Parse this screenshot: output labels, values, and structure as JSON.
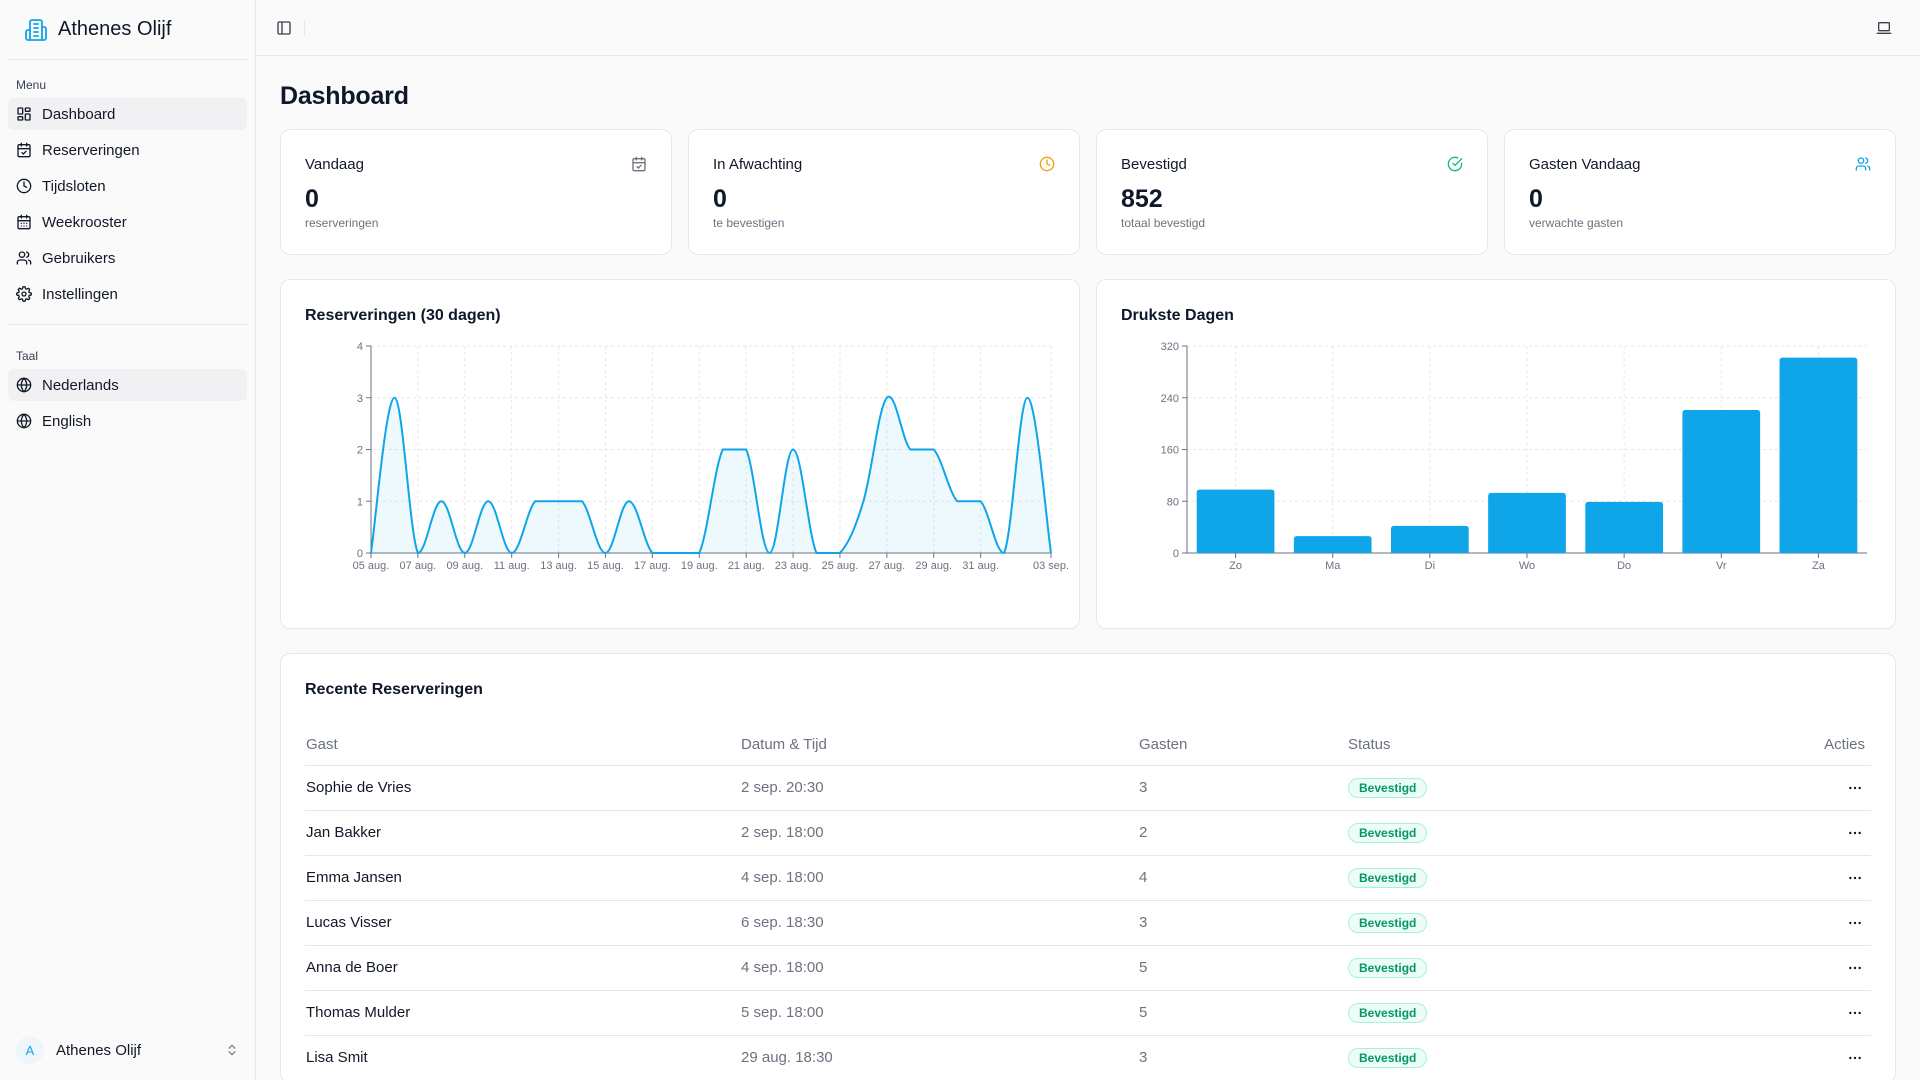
{
  "app": {
    "name": "Athenes Olijf"
  },
  "sidebar": {
    "menu_label": "Menu",
    "items": [
      {
        "label": "Dashboard",
        "icon": "grid-icon",
        "active": true
      },
      {
        "label": "Reserveringen",
        "icon": "calendar-check-icon"
      },
      {
        "label": "Tijdsloten",
        "icon": "clock-icon"
      },
      {
        "label": "Weekrooster",
        "icon": "calendar-icon"
      },
      {
        "label": "Gebruikers",
        "icon": "users-icon"
      },
      {
        "label": "Instellingen",
        "icon": "gear-icon"
      }
    ],
    "lang_label": "Taal",
    "languages": [
      {
        "label": "Nederlands",
        "icon": "globe-icon",
        "active": true
      },
      {
        "label": "English",
        "icon": "globe-icon"
      }
    ],
    "user": {
      "initial": "A",
      "name": "Athenes Olijf"
    }
  },
  "page": {
    "title": "Dashboard"
  },
  "stats": [
    {
      "title": "Vandaag",
      "value": "0",
      "sub": "reserveringen",
      "icon": "calendar-check-icon",
      "color": "#6b7280"
    },
    {
      "title": "In Afwachting",
      "value": "0",
      "sub": "te bevestigen",
      "icon": "clock-icon",
      "color": "#f59e0b"
    },
    {
      "title": "Bevestigd",
      "value": "852",
      "sub": "totaal bevestigd",
      "icon": "check-circle-icon",
      "color": "#10b981"
    },
    {
      "title": "Gasten Vandaag",
      "value": "0",
      "sub": "verwachte gasten",
      "icon": "users-icon",
      "color": "#0ea5e9"
    }
  ],
  "chart_data": [
    {
      "type": "area",
      "title": "Reserveringen (30 dagen)",
      "x": [
        "05 aug.",
        "06 aug.",
        "07 aug.",
        "08 aug.",
        "09 aug.",
        "10 aug.",
        "11 aug.",
        "12 aug.",
        "13 aug.",
        "14 aug.",
        "15 aug.",
        "16 aug.",
        "17 aug.",
        "18 aug.",
        "19 aug.",
        "20 aug.",
        "21 aug.",
        "22 aug.",
        "23 aug.",
        "24 aug.",
        "25 aug.",
        "26 aug.",
        "27 aug.",
        "28 aug.",
        "29 aug.",
        "30 aug.",
        "31 aug.",
        "01 sep.",
        "02 sep.",
        "03 sep."
      ],
      "x_tick_labels": [
        "05 aug.",
        "07 aug.",
        "09 aug.",
        "11 aug.",
        "13 aug.",
        "15 aug.",
        "17 aug.",
        "19 aug.",
        "21 aug.",
        "23 aug.",
        "25 aug.",
        "27 aug.",
        "29 aug.",
        "31 aug.",
        "03 sep."
      ],
      "values": [
        0,
        3,
        0,
        1,
        0,
        1,
        0,
        1,
        1,
        1,
        0,
        1,
        0,
        0,
        0,
        2,
        2,
        0,
        2,
        0,
        0,
        1,
        3,
        2,
        2,
        1,
        1,
        0,
        3,
        0
      ],
      "ylim": [
        0,
        4
      ],
      "yticks": [
        0,
        1,
        2,
        3,
        4
      ],
      "color": "#0ea5e9",
      "grid": true
    },
    {
      "type": "bar",
      "title": "Drukste Dagen",
      "categories": [
        "Zo",
        "Ma",
        "Di",
        "Wo",
        "Do",
        "Vr",
        "Za"
      ],
      "values": [
        98,
        26,
        42,
        93,
        79,
        221,
        302
      ],
      "ylim": [
        0,
        320
      ],
      "yticks": [
        0,
        80,
        160,
        240,
        320
      ],
      "color": "#0ea5e9",
      "grid": true
    }
  ],
  "recent": {
    "title": "Recente Reserveringen",
    "columns": [
      "Gast",
      "Datum & Tijd",
      "Gasten",
      "Status",
      "Acties"
    ],
    "rows": [
      {
        "guest": "Sophie de Vries",
        "datetime": "2 sep. 20:30",
        "guests": "3",
        "status": "Bevestigd"
      },
      {
        "guest": "Jan Bakker",
        "datetime": "2 sep. 18:00",
        "guests": "2",
        "status": "Bevestigd"
      },
      {
        "guest": "Emma Jansen",
        "datetime": "4 sep. 18:00",
        "guests": "4",
        "status": "Bevestigd"
      },
      {
        "guest": "Lucas Visser",
        "datetime": "6 sep. 18:30",
        "guests": "3",
        "status": "Bevestigd"
      },
      {
        "guest": "Anna de Boer",
        "datetime": "4 sep. 18:00",
        "guests": "5",
        "status": "Bevestigd"
      },
      {
        "guest": "Thomas Mulder",
        "datetime": "5 sep. 18:00",
        "guests": "5",
        "status": "Bevestigd"
      },
      {
        "guest": "Lisa Smit",
        "datetime": "29 aug. 18:30",
        "guests": "3",
        "status": "Bevestigd"
      }
    ]
  }
}
